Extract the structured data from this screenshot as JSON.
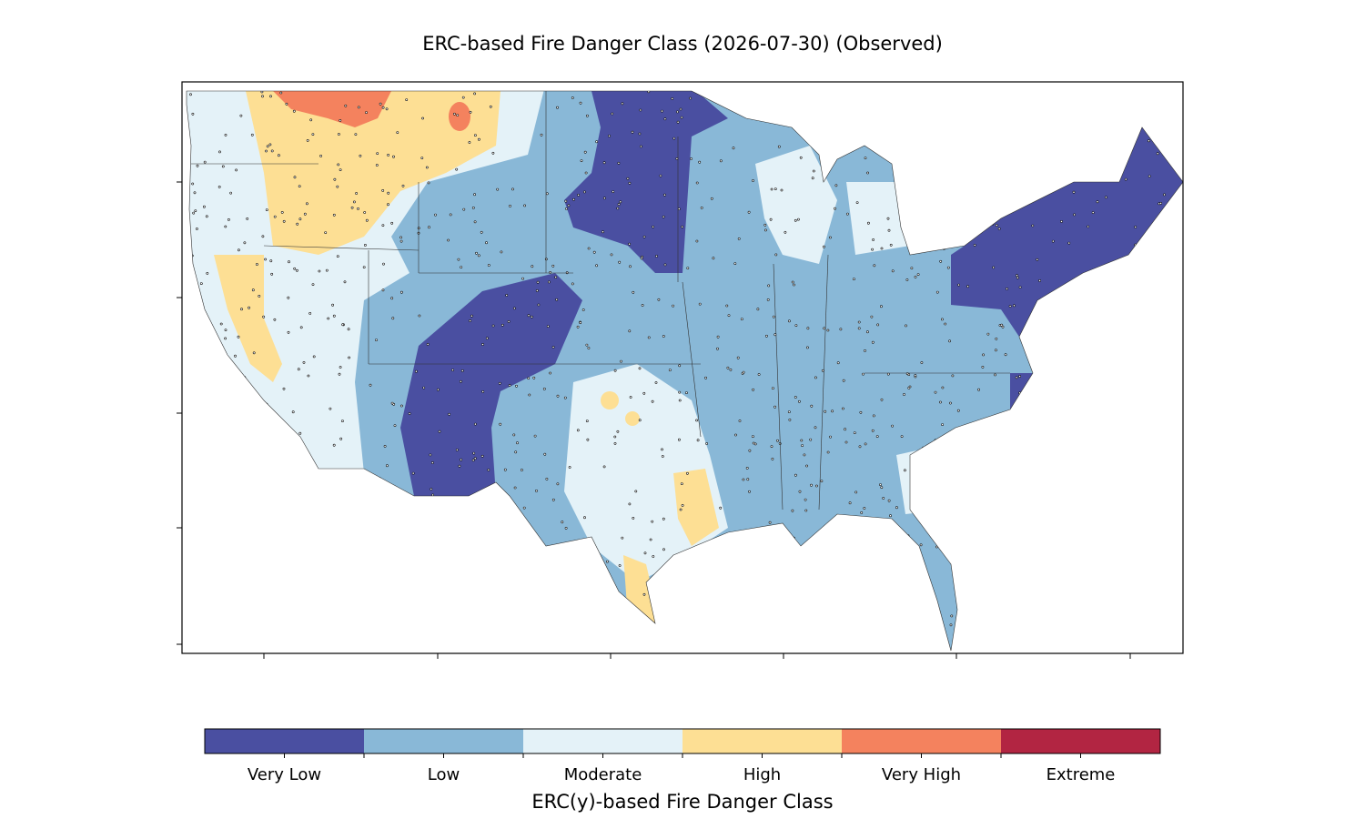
{
  "title": "ERC-based Fire Danger Class (2026-07-30) (Observed)",
  "colorbar": {
    "label": "ERC(y)-based Fire Danger Class",
    "classes": [
      {
        "name": "Very Low",
        "color": "#4a4fa1"
      },
      {
        "name": "Low",
        "color": "#89b8d7"
      },
      {
        "name": "Moderate",
        "color": "#e4f2f8"
      },
      {
        "name": "High",
        "color": "#fddf94"
      },
      {
        "name": "Very High",
        "color": "#f4825e"
      },
      {
        "name": "Extreme",
        "color": "#b22542"
      }
    ]
  }
}
